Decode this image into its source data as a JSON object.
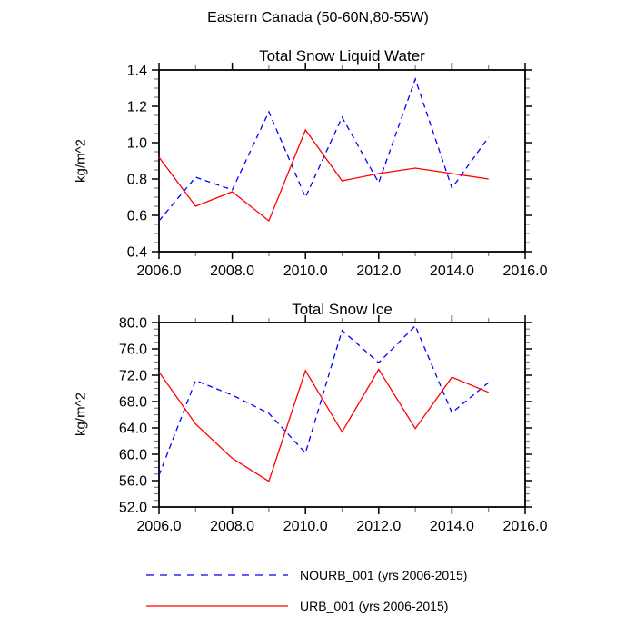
{
  "page_title": "Eastern Canada (50-60N,80-55W)",
  "colors": {
    "nourb_line": "#0000ff",
    "urb_line": "#ff0000",
    "axis": "#000000",
    "minor_tick": "#808080",
    "background": "#ffffff"
  },
  "legend": {
    "entries": [
      {
        "name": "legend-nourb",
        "label": "NOURB_001 (yrs 2006-2015)",
        "color": "#0000ff",
        "dashed": true
      },
      {
        "name": "legend-urb",
        "label": "URB_001 (yrs 2006-2015)",
        "color": "#ff0000",
        "dashed": false
      }
    ]
  },
  "chart_data": [
    {
      "type": "line",
      "title": "Total Snow Liquid Water",
      "xlabel": "",
      "ylabel": "kg/m^2",
      "xlim": [
        2006,
        2016
      ],
      "ylim": [
        0.4,
        1.4
      ],
      "xticks": [
        2006,
        2008,
        2010,
        2012,
        2014,
        2016
      ],
      "xtick_labels": [
        "2006.0",
        "2008.0",
        "2010.0",
        "2012.0",
        "2014.0",
        "2016.0"
      ],
      "minor_x_step": 1,
      "yticks": [
        0.4,
        0.6,
        0.8,
        1.0,
        1.2,
        1.4
      ],
      "ytick_labels": [
        "0.4",
        "0.6",
        "0.8",
        "1.0",
        "1.2",
        "1.4"
      ],
      "minor_y_step": 0.05,
      "grid": false,
      "x": [
        2006,
        2007,
        2008,
        2009,
        2010,
        2011,
        2012,
        2013,
        2014,
        2015
      ],
      "series": [
        {
          "name": "NOURB_001",
          "color": "#0000ff",
          "dashed": true,
          "values": [
            0.57,
            0.81,
            0.74,
            1.17,
            0.7,
            1.14,
            0.78,
            1.35,
            0.75,
            1.03
          ]
        },
        {
          "name": "URB_001",
          "color": "#ff0000",
          "dashed": false,
          "values": [
            0.92,
            0.65,
            0.73,
            0.57,
            1.07,
            0.79,
            0.83,
            0.86,
            0.83,
            0.8
          ]
        }
      ]
    },
    {
      "type": "line",
      "title": "Total Snow Ice",
      "xlabel": "",
      "ylabel": "kg/m^2",
      "xlim": [
        2006,
        2016
      ],
      "ylim": [
        52.0,
        80.0
      ],
      "xticks": [
        2006,
        2008,
        2010,
        2012,
        2014,
        2016
      ],
      "xtick_labels": [
        "2006.0",
        "2008.0",
        "2010.0",
        "2012.0",
        "2014.0",
        "2016.0"
      ],
      "minor_x_step": 1,
      "yticks": [
        52.0,
        56.0,
        60.0,
        64.0,
        68.0,
        72.0,
        76.0,
        80.0
      ],
      "ytick_labels": [
        "52.0",
        "56.0",
        "60.0",
        "64.0",
        "68.0",
        "72.0",
        "76.0",
        "80.0"
      ],
      "minor_y_step": 1.0,
      "grid": false,
      "x": [
        2006,
        2007,
        2008,
        2009,
        2010,
        2011,
        2012,
        2013,
        2014,
        2015
      ],
      "series": [
        {
          "name": "NOURB_001",
          "color": "#0000ff",
          "dashed": true,
          "values": [
            56.8,
            71.2,
            69.0,
            66.2,
            60.2,
            78.8,
            73.9,
            79.5,
            66.3,
            70.9
          ]
        },
        {
          "name": "URB_001",
          "color": "#ff0000",
          "dashed": false,
          "values": [
            72.5,
            64.6,
            59.4,
            55.9,
            72.7,
            63.4,
            72.9,
            63.9,
            71.7,
            69.4
          ]
        }
      ]
    }
  ]
}
